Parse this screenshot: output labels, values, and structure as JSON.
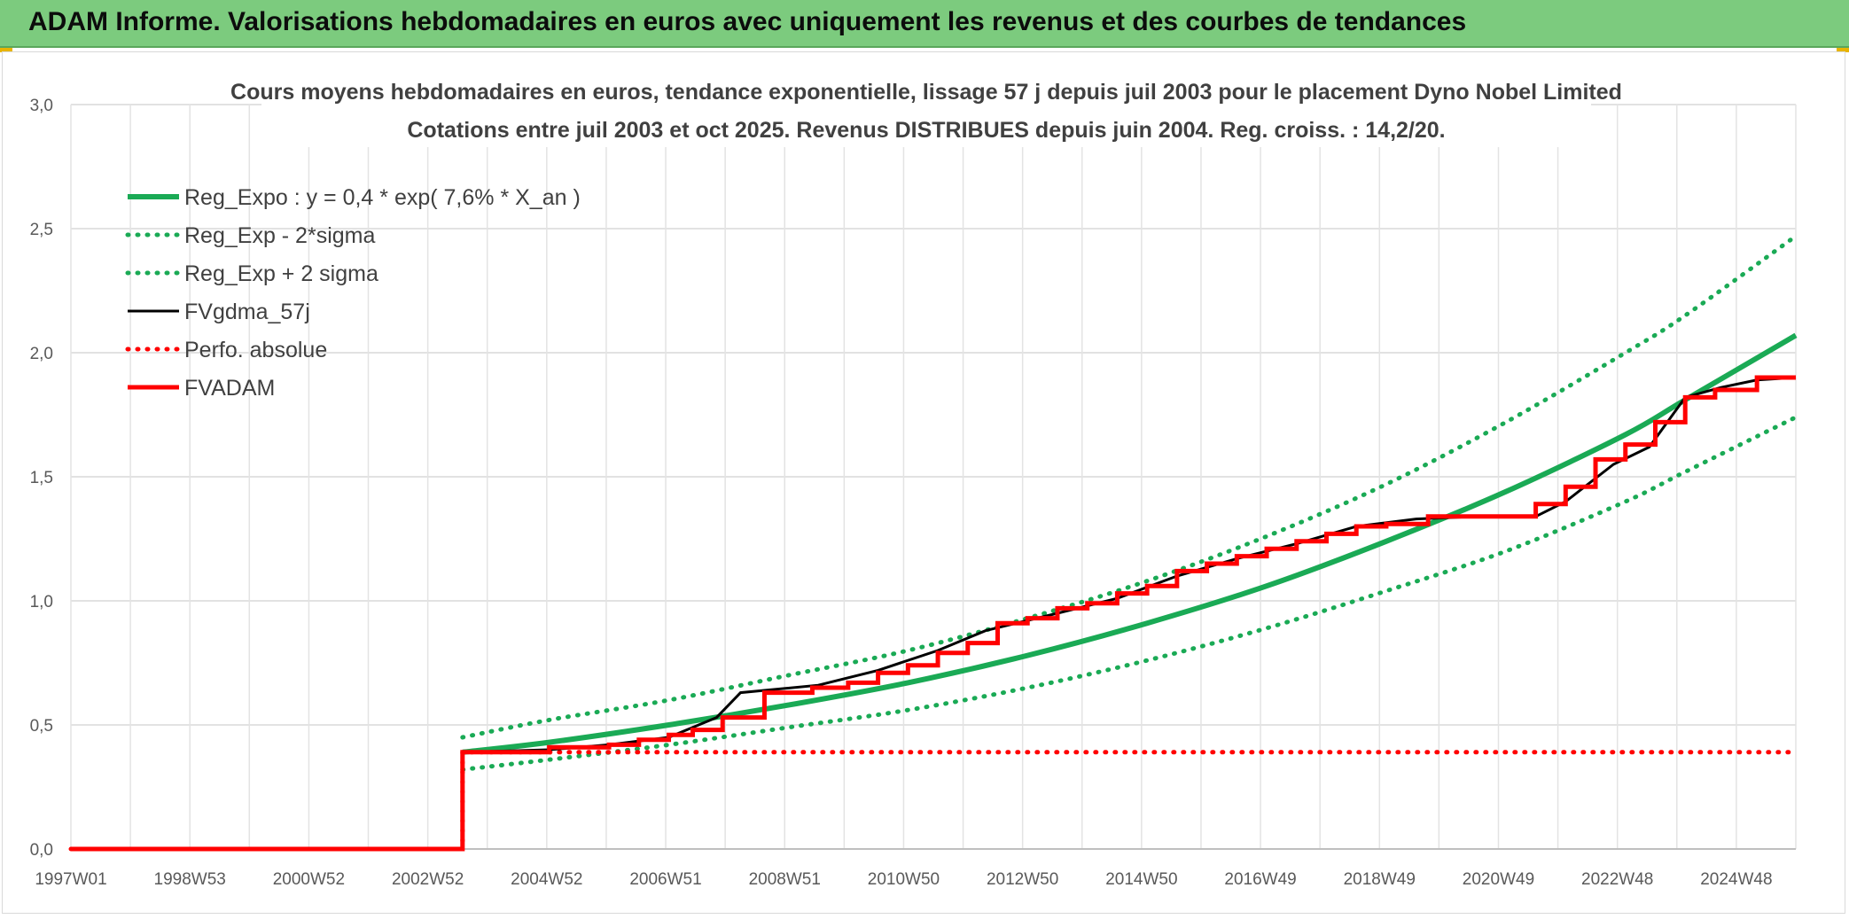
{
  "header": {
    "title": "ADAM Informe. Valorisations hebdomadaires en euros avec uniquement les revenus et des courbes de tendances"
  },
  "colors": {
    "header_bg": "#7ccb7e",
    "reg_green": "#1aaa55",
    "red": "#ff0000",
    "black": "#000000"
  },
  "chart_data": {
    "type": "line",
    "title": "Cours moyens hebdomadaires en euros, tendance exponentielle, lissage 57 j depuis juil 2003 pour le placement Dyno Nobel Limited",
    "subtitle": "Cotations entre juil 2003 et oct 2025. Revenus DISTRIBUES depuis juin 2004. Reg. croiss. : 14,2/20.",
    "xlabel": "",
    "ylabel": "",
    "ylim": [
      0,
      3
    ],
    "xlim": [
      1997.0,
      2025.85
    ],
    "y_ticks": [
      "0,0",
      "0,5",
      "1,0",
      "1,5",
      "2,0",
      "2,5",
      "3,0"
    ],
    "x_ticks": [
      "1997W01",
      "1998W53",
      "2000W52",
      "2002W52",
      "2004W52",
      "2006W51",
      "2008W51",
      "2010W50",
      "2012W50",
      "2014W50",
      "2016W49",
      "2018W49",
      "2020W49",
      "2022W48",
      "2024W48"
    ],
    "legend_position": "top-left",
    "grid": true,
    "series": [
      {
        "name": "Reg_Expo : y = 0,4 * exp( 7,6% *  X_an )",
        "style": "solid-thick",
        "color": "#1aaa55",
        "x": [
          2003.55,
          2005,
          2007,
          2009,
          2011,
          2013,
          2015,
          2017,
          2019,
          2021,
          2023,
          2024,
          2025.85
        ],
        "y": [
          0.39,
          0.43,
          0.5,
          0.58,
          0.67,
          0.78,
          0.91,
          1.06,
          1.24,
          1.44,
          1.67,
          1.81,
          2.07
        ]
      },
      {
        "name": "Reg_Exp - 2*sigma",
        "style": "dotted",
        "color": "#1aaa55",
        "x": [
          2003.55,
          2005,
          2007,
          2009,
          2011,
          2013,
          2015,
          2017,
          2019,
          2021,
          2023,
          2024,
          2025.85
        ],
        "y": [
          0.32,
          0.36,
          0.42,
          0.49,
          0.56,
          0.65,
          0.76,
          0.89,
          1.04,
          1.2,
          1.4,
          1.52,
          1.74
        ]
      },
      {
        "name": "Reg_Exp + 2 sigma",
        "style": "dotted",
        "color": "#1aaa55",
        "x": [
          2003.55,
          2005,
          2007,
          2009,
          2011,
          2013,
          2015,
          2017,
          2019,
          2021,
          2023,
          2024,
          2025.85
        ],
        "y": [
          0.45,
          0.52,
          0.6,
          0.7,
          0.8,
          0.93,
          1.08,
          1.26,
          1.47,
          1.72,
          2.0,
          2.15,
          2.47
        ]
      },
      {
        "name": "FVgdma_57j",
        "style": "solid",
        "color": "#000000",
        "x": [
          1997.0,
          2003.55,
          2003.55,
          2005.0,
          2006.0,
          2007.0,
          2007.8,
          2008.2,
          2009.5,
          2010.5,
          2011.5,
          2012.3,
          2013.5,
          2014.5,
          2015.5,
          2016.5,
          2017.5,
          2018.5,
          2019.5,
          2020.5,
          2021.5,
          2022.0,
          2022.8,
          2023.4,
          2024.0,
          2024.6,
          2025.2,
          2025.85
        ],
        "y": [
          0.0,
          0.0,
          0.39,
          0.4,
          0.42,
          0.45,
          0.53,
          0.63,
          0.66,
          0.72,
          0.8,
          0.88,
          0.95,
          1.01,
          1.1,
          1.17,
          1.23,
          1.3,
          1.33,
          1.34,
          1.34,
          1.4,
          1.55,
          1.62,
          1.82,
          1.86,
          1.89,
          1.9
        ]
      },
      {
        "name": "Perfo. absolue",
        "style": "dotted",
        "color": "#ff0000",
        "x": [
          1997.0,
          2003.55,
          2003.55,
          2025.85
        ],
        "y": [
          0.0,
          0.0,
          0.39,
          0.39
        ]
      },
      {
        "name": "FVADAM",
        "style": "step-thick",
        "color": "#ff0000",
        "x": [
          1997.0,
          2003.55,
          2003.55,
          2005.0,
          2006.0,
          2006.5,
          2007.0,
          2007.4,
          2007.9,
          2008.6,
          2009.4,
          2010.0,
          2010.5,
          2011.0,
          2011.5,
          2012.0,
          2012.5,
          2013.0,
          2013.5,
          2014.0,
          2014.5,
          2015.0,
          2015.5,
          2016.0,
          2016.5,
          2017.0,
          2017.5,
          2018.0,
          2018.5,
          2019.0,
          2019.7,
          2021.0,
          2021.5,
          2022.0,
          2022.5,
          2023.0,
          2023.5,
          2024.0,
          2024.5,
          2025.2,
          2025.85
        ],
        "y": [
          0.0,
          0.0,
          0.39,
          0.41,
          0.42,
          0.44,
          0.46,
          0.48,
          0.53,
          0.63,
          0.65,
          0.67,
          0.71,
          0.74,
          0.79,
          0.83,
          0.91,
          0.93,
          0.97,
          0.99,
          1.03,
          1.06,
          1.12,
          1.15,
          1.18,
          1.21,
          1.24,
          1.27,
          1.3,
          1.31,
          1.34,
          1.34,
          1.39,
          1.46,
          1.57,
          1.63,
          1.72,
          1.82,
          1.85,
          1.9,
          1.9
        ]
      }
    ]
  }
}
